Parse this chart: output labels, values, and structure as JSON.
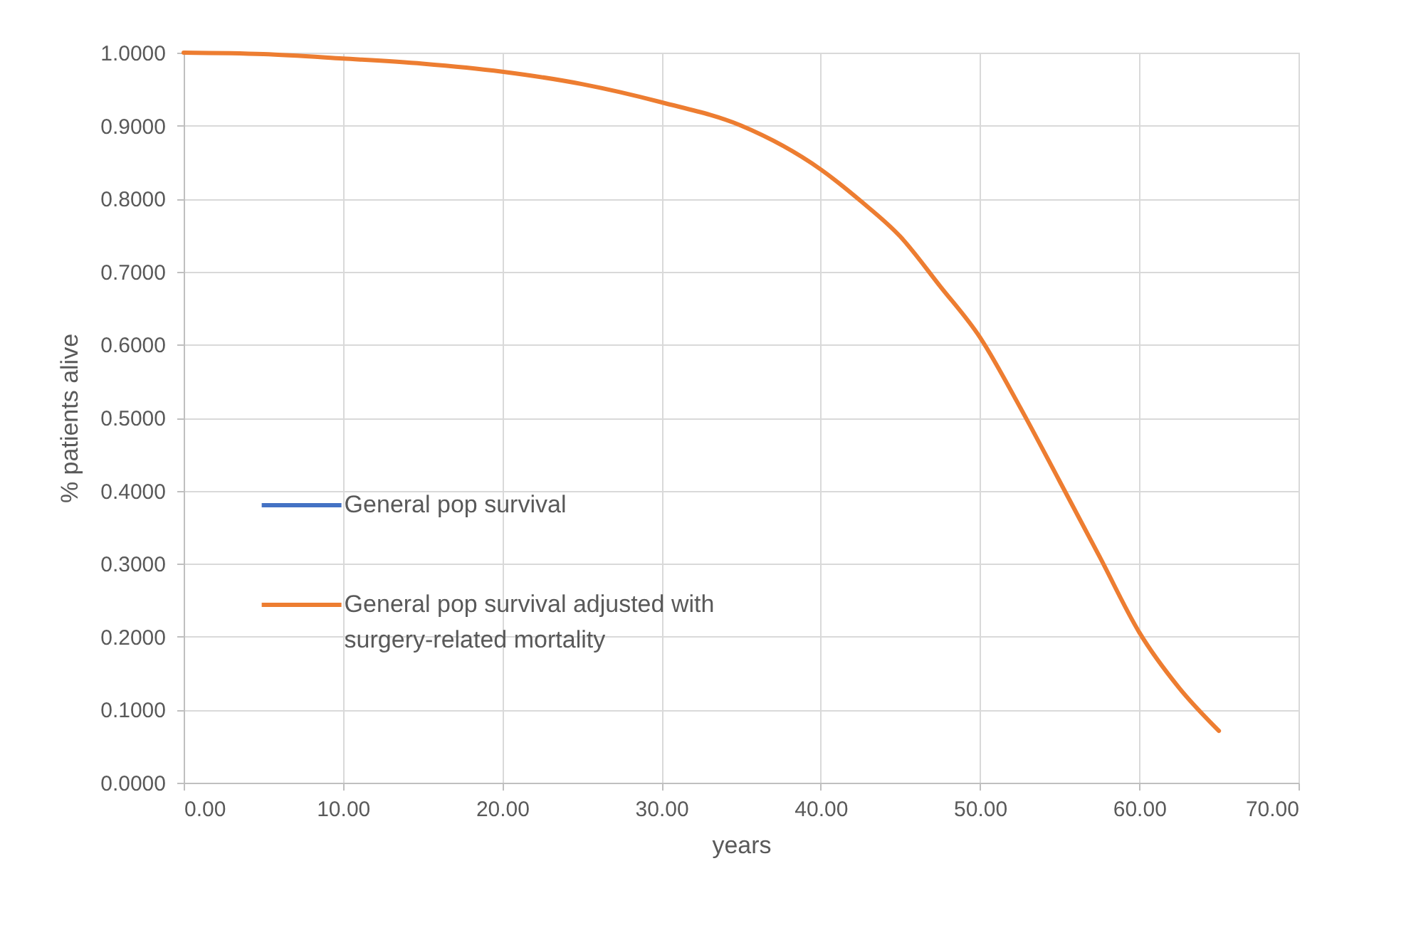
{
  "chart_data": {
    "type": "line",
    "xlabel": "years",
    "ylabel": "% patients alive",
    "x": [
      0,
      5,
      10,
      15,
      20,
      25,
      30,
      35,
      40,
      42.5,
      45,
      47.5,
      50,
      52.5,
      55,
      57.5,
      60,
      62.5,
      65
    ],
    "series": [
      {
        "name": "General pop survival",
        "color": "#4472c4",
        "values": [
          null,
          null,
          null,
          null,
          null,
          null,
          null,
          null,
          null,
          null,
          null,
          null,
          null,
          null,
          null,
          null,
          null,
          null,
          null
        ]
      },
      {
        "name": "General pop survival adjusted with surgery-related mortality",
        "color": "#ed7d31",
        "values": [
          1.0,
          0.998,
          0.992,
          0.985,
          0.974,
          0.957,
          0.932,
          0.9,
          0.84,
          0.797,
          0.748,
          0.68,
          0.61,
          0.515,
          0.413,
          0.31,
          0.206,
          0.13,
          0.071
        ]
      }
    ],
    "xlim": [
      0,
      70
    ],
    "xticks": [
      {
        "value": 0,
        "label": "0.00"
      },
      {
        "value": 10,
        "label": "10.00"
      },
      {
        "value": 20,
        "label": "20.00"
      },
      {
        "value": 30,
        "label": "30.00"
      },
      {
        "value": 40,
        "label": "40.00"
      },
      {
        "value": 50,
        "label": "50.00"
      },
      {
        "value": 60,
        "label": "60.00"
      },
      {
        "value": 70,
        "label": "70.00"
      }
    ],
    "ylim": [
      0,
      1
    ],
    "yticks": [
      {
        "value": 0,
        "label": "0.0000"
      },
      {
        "value": 0.1,
        "label": "0.1000"
      },
      {
        "value": 0.2,
        "label": "0.2000"
      },
      {
        "value": 0.3,
        "label": "0.3000"
      },
      {
        "value": 0.4,
        "label": "0.4000"
      },
      {
        "value": 0.5,
        "label": "0.5000"
      },
      {
        "value": 0.6,
        "label": "0.6000"
      },
      {
        "value": 0.7,
        "label": "0.7000"
      },
      {
        "value": 0.8,
        "label": "0.8000"
      },
      {
        "value": 0.9,
        "label": "0.9000"
      },
      {
        "value": 1,
        "label": "1.0000"
      }
    ],
    "grid": true,
    "legend": "left",
    "marker": "none",
    "line_style": "solid"
  }
}
